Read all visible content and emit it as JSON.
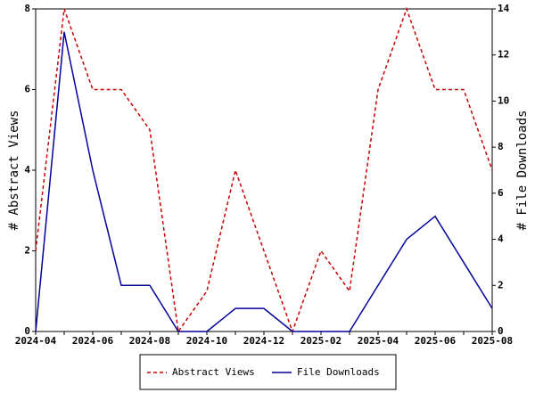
{
  "chart_data": {
    "type": "line",
    "categories": [
      "2024-04",
      null,
      "2024-06",
      null,
      "2024-08",
      null,
      "2024-10",
      null,
      "2024-12",
      null,
      "2025-02",
      null,
      "2025-04",
      null,
      "2025-06",
      null,
      "2025-08"
    ],
    "ylabel": "# Abstract Views",
    "y2label": "# File Downloads",
    "ylim": [
      0,
      8
    ],
    "yticks": [
      0,
      2,
      4,
      6,
      8
    ],
    "y2lim": [
      0,
      14
    ],
    "y2ticks": [
      0,
      2,
      4,
      6,
      8,
      10,
      12,
      14
    ],
    "legend": "bottom",
    "series": [
      {
        "name": "Abstract Views",
        "color": "#cc0000",
        "linestyle": "dashed",
        "values": [
          2,
          8,
          6,
          6,
          5,
          0,
          1,
          4,
          2,
          0,
          2,
          1,
          6,
          8,
          6,
          6,
          4
        ]
      },
      {
        "name": "File Downloads",
        "color": "#00009c",
        "linestyle": "solid",
        "axis": "y2",
        "values": [
          0,
          13,
          7,
          2,
          2,
          0,
          0,
          1,
          1,
          0,
          0,
          0,
          2,
          4,
          5,
          3,
          1
        ]
      }
    ]
  }
}
